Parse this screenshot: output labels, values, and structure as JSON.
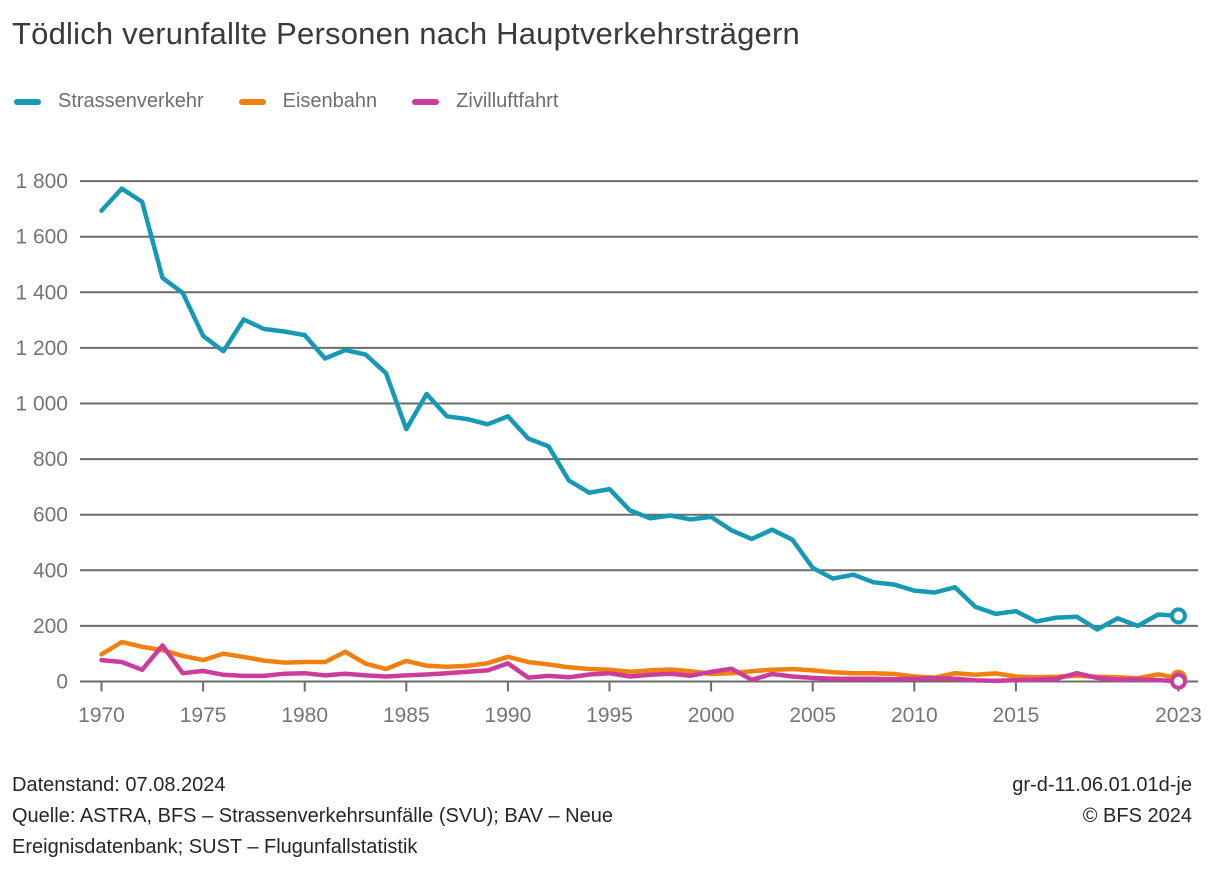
{
  "title": "Tödlich verunfallte Personen nach Hauptverkehrsträgern",
  "legend": {
    "items": [
      {
        "label": "Strassenverkehr",
        "color": "#1699B4"
      },
      {
        "label": "Eisenbahn",
        "color": "#F0810F"
      },
      {
        "label": "Zivilluftfahrt",
        "color": "#CC3C9C"
      }
    ]
  },
  "chart_data": {
    "type": "line",
    "title": "Tödlich verunfallte Personen nach Hauptverkehrsträgern",
    "xlabel": "",
    "ylabel": "",
    "xlim": [
      1970,
      2023
    ],
    "ylim": [
      0,
      1800
    ],
    "grid": "horizontal",
    "legend_position": "top",
    "end_markers": "open-circle-on-last-point",
    "colors": {
      "grid": "#6b6b6b",
      "tick_label": "#757575"
    },
    "x": [
      1970,
      1971,
      1972,
      1973,
      1974,
      1975,
      1976,
      1977,
      1978,
      1979,
      1980,
      1981,
      1982,
      1983,
      1984,
      1985,
      1986,
      1987,
      1988,
      1989,
      1990,
      1991,
      1992,
      1993,
      1994,
      1995,
      1996,
      1997,
      1998,
      1999,
      2000,
      2001,
      2002,
      2003,
      2004,
      2005,
      2006,
      2007,
      2008,
      2009,
      2010,
      2011,
      2012,
      2013,
      2014,
      2015,
      2016,
      2017,
      2018,
      2019,
      2020,
      2021,
      2022,
      2023
    ],
    "series": [
      {
        "name": "Strassenverkehr",
        "color": "#1699B4",
        "values": [
          1694,
          1773,
          1725,
          1452,
          1398,
          1243,
          1188,
          1302,
          1268,
          1259,
          1246,
          1162,
          1192,
          1176,
          1109,
          908,
          1034,
          954,
          944,
          925,
          954,
          874,
          846,
          723,
          679,
          692,
          616,
          587,
          597,
          583,
          592,
          544,
          513,
          546,
          510,
          409,
          370,
          384,
          357,
          349,
          327,
          320,
          339,
          269,
          243,
          253,
          216,
          230,
          233,
          187,
          227,
          200,
          241,
          236
        ]
      },
      {
        "name": "Eisenbahn",
        "color": "#F0810F",
        "values": [
          98,
          142,
          125,
          113,
          92,
          77,
          100,
          88,
          75,
          68,
          70,
          70,
          107,
          64,
          45,
          74,
          57,
          53,
          56,
          66,
          89,
          70,
          61,
          51,
          45,
          42,
          35,
          40,
          43,
          37,
          27,
          30,
          37,
          42,
          45,
          40,
          33,
          30,
          30,
          27,
          18,
          14,
          30,
          24,
          29,
          18,
          15,
          17,
          21,
          17,
          15,
          12,
          26,
          12
        ]
      },
      {
        "name": "Zivilluftfahrt",
        "color": "#CC3C9C",
        "values": [
          77,
          70,
          42,
          130,
          30,
          38,
          24,
          20,
          20,
          28,
          30,
          22,
          28,
          22,
          18,
          22,
          25,
          30,
          35,
          40,
          65,
          14,
          20,
          15,
          25,
          30,
          18,
          24,
          28,
          21,
          35,
          46,
          6,
          27,
          18,
          13,
          10,
          10,
          10,
          8,
          10,
          12,
          10,
          4,
          2,
          5,
          7,
          10,
          30,
          13,
          7,
          8,
          5,
          1
        ]
      }
    ],
    "y_ticks": [
      {
        "value": 0,
        "label": "0"
      },
      {
        "value": 200,
        "label": "200"
      },
      {
        "value": 400,
        "label": "400"
      },
      {
        "value": 600,
        "label": "600"
      },
      {
        "value": 800,
        "label": "800"
      },
      {
        "value": 1000,
        "label": "1 000"
      },
      {
        "value": 1200,
        "label": "1 200"
      },
      {
        "value": 1400,
        "label": "1 400"
      },
      {
        "value": 1600,
        "label": "1 600"
      },
      {
        "value": 1800,
        "label": "1 800"
      }
    ],
    "x_ticks": [
      {
        "value": 1970,
        "label": "1970"
      },
      {
        "value": 1975,
        "label": "1975"
      },
      {
        "value": 1980,
        "label": "1980"
      },
      {
        "value": 1985,
        "label": "1985"
      },
      {
        "value": 1990,
        "label": "1990"
      },
      {
        "value": 1995,
        "label": "1995"
      },
      {
        "value": 2000,
        "label": "2000"
      },
      {
        "value": 2005,
        "label": "2005"
      },
      {
        "value": 2010,
        "label": "2010"
      },
      {
        "value": 2015,
        "label": "2015"
      },
      {
        "value": 2023,
        "label": "2023"
      }
    ]
  },
  "footer": {
    "datenstand": "Datenstand: 07.08.2024",
    "source_line1": "Quelle: ASTRA, BFS – Strassenverkehrsunfälle (SVU); BAV – Neue",
    "source_line2": "Ereignisdatenbank; SUST – Flugunfallstatistik",
    "chart_id": "gr-d-11.06.01.01d-je",
    "copyright": "© BFS 2024"
  }
}
